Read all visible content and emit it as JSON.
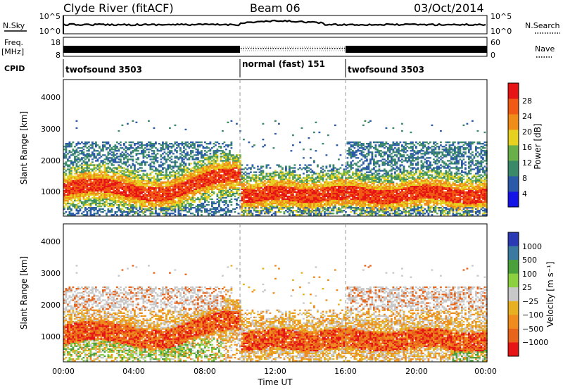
{
  "header": {
    "station": "Clyde River (fitACF)",
    "beam": "Beam 06",
    "date": "03/Oct/2014"
  },
  "noise_panel": {
    "left_label": "N.Sky",
    "right_label": "N.Search",
    "ticks_left": [
      "10^5",
      "10^0"
    ],
    "ticks_right": [
      "10^5",
      "10^0"
    ]
  },
  "freq_panel": {
    "left_label_line1": "Freq.",
    "left_label_line2": "[MHz]",
    "ticks_left": [
      "18",
      "8"
    ],
    "right_label": "Nave",
    "ticks_right": [
      "60",
      "0"
    ]
  },
  "cpid": {
    "label": "CPID",
    "segments": [
      "twofsound 3503",
      "normal (fast) 151",
      "twofsound 3503"
    ]
  },
  "colors": {
    "power_scale": [
      "#1414e6",
      "#2a5aa8",
      "#3a8a6a",
      "#6ab04a",
      "#e6d020",
      "#f08c18",
      "#f05a14",
      "#e61414"
    ],
    "velocity_scale": [
      "#2a3ab4",
      "#3a7aa0",
      "#4aa03a",
      "#8cd040",
      "#c8c8c8",
      "#e6b020",
      "#f08c1e",
      "#e8641a",
      "#e61414"
    ]
  },
  "chart_data": [
    {
      "type": "heatmap",
      "title": "Power",
      "ylabel": "Slant Range [km]",
      "ylim": [
        180,
        4500
      ],
      "xlim_hours": [
        0,
        24
      ],
      "y_ticks": [
        "1000",
        "2000",
        "3000",
        "4000"
      ],
      "x_ticks": [
        "00:00",
        "04:00",
        "08:00",
        "12:00",
        "16:00",
        "20:00",
        "00:00"
      ],
      "colorbar_label": "Power [dB]",
      "colorbar_ticks": [
        "4",
        "8",
        "12",
        "16",
        "20",
        "24",
        "28"
      ],
      "mode_boundaries_hours": [
        10,
        16
      ]
    },
    {
      "type": "heatmap",
      "title": "Velocity",
      "ylabel": "Slant Range [km]",
      "xlabel": "Time UT",
      "ylim": [
        180,
        4500
      ],
      "xlim_hours": [
        0,
        24
      ],
      "y_ticks": [
        "1000",
        "2000",
        "3000",
        "4000"
      ],
      "x_ticks": [
        "00:00",
        "04:00",
        "08:00",
        "12:00",
        "16:00",
        "20:00",
        "00:00"
      ],
      "colorbar_label": "Velocity [m s⁻¹]",
      "colorbar_ticks": [
        "1000",
        "500",
        "100",
        "25",
        "−25",
        "−100",
        "−500",
        "−1000"
      ],
      "mode_boundaries_hours": [
        10,
        16
      ]
    }
  ]
}
